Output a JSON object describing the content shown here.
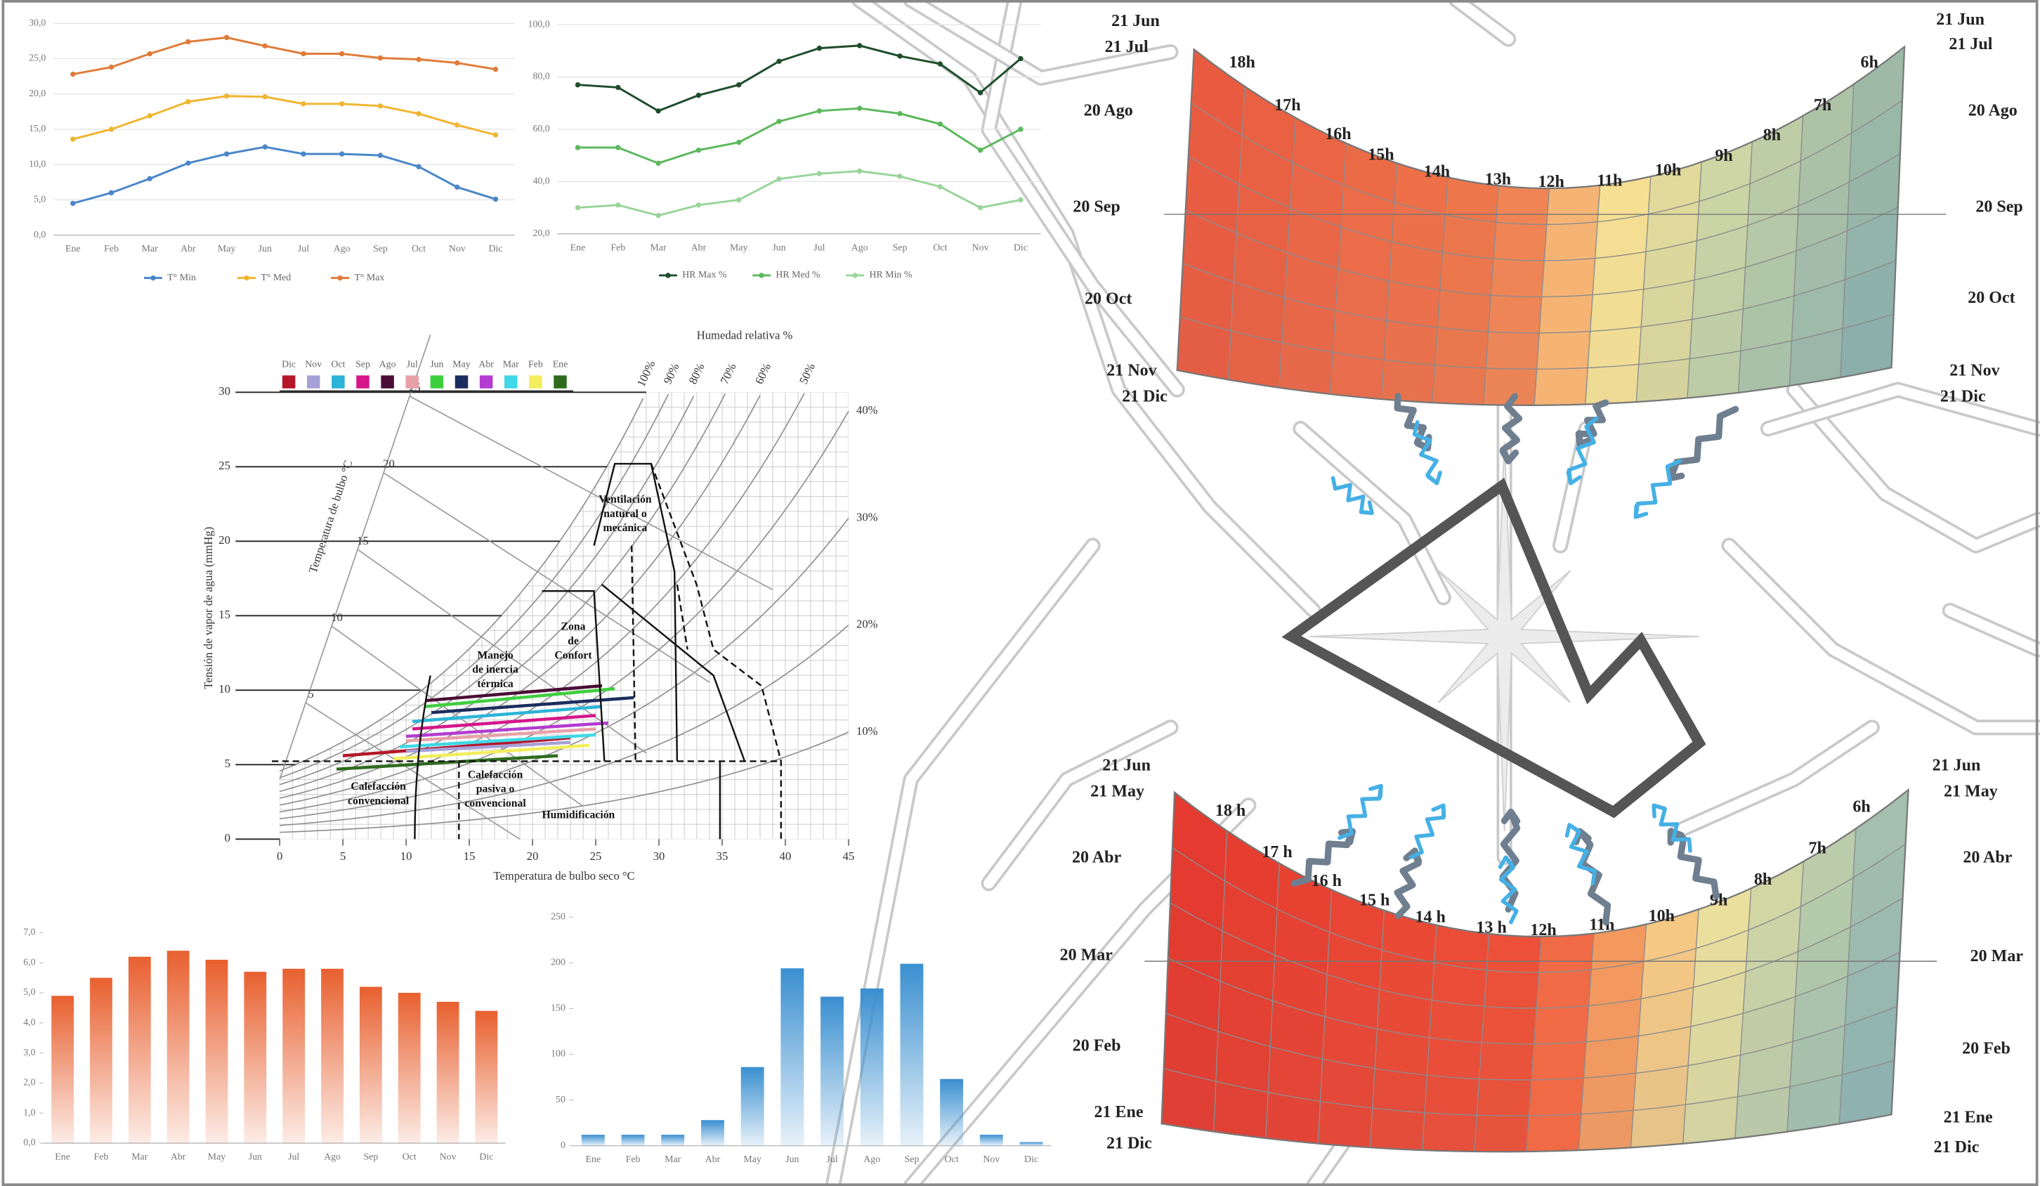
{
  "chart_data": [
    {
      "type": "line",
      "categories": [
        "Ene",
        "Feb",
        "Mar",
        "Abr",
        "May",
        "Jun",
        "Jul",
        "Ago",
        "Sep",
        "Oct",
        "Nov",
        "Dic"
      ],
      "series": [
        {
          "name": "T° Min",
          "color": "#4a86c8",
          "values": [
            4.5,
            6,
            8,
            10.2,
            11.5,
            12.5,
            11.5,
            11.5,
            11.3,
            9.7,
            6.8,
            5.1
          ]
        },
        {
          "name": "T° Med",
          "color": "#f0b530",
          "values": [
            13.6,
            15,
            16.9,
            18.9,
            19.7,
            19.6,
            18.6,
            18.6,
            18.3,
            17.2,
            15.6,
            14.2
          ]
        },
        {
          "name": "T° Max",
          "color": "#e07b39",
          "values": [
            22.8,
            23.8,
            25.7,
            27.4,
            28,
            26.8,
            25.7,
            25.7,
            25.1,
            24.9,
            24.4,
            23.5
          ]
        }
      ],
      "ylim": [
        0,
        30
      ],
      "yticks": [
        {
          "value": 0,
          "label": "0,0"
        },
        {
          "value": 5,
          "label": "5,0"
        },
        {
          "value": 10,
          "label": "10,0"
        },
        {
          "value": 15,
          "label": "15,0"
        },
        {
          "value": 20,
          "label": "20,0"
        },
        {
          "value": 25,
          "label": "25,0"
        },
        {
          "value": 30,
          "label": "30,0"
        }
      ],
      "grid": true,
      "legend": "bottom"
    },
    {
      "type": "line",
      "categories": [
        "Ene",
        "Feb",
        "Mar",
        "Abr",
        "May",
        "Jun",
        "Jul",
        "Ago",
        "Sep",
        "Oct",
        "Nov",
        "Dic"
      ],
      "series": [
        {
          "name": "HR Max %",
          "color": "#1e4d2b",
          "values": [
            77,
            76,
            67,
            73,
            77,
            86,
            91,
            92,
            88,
            85,
            74,
            87
          ]
        },
        {
          "name": "HR Med %",
          "color": "#5cb85c",
          "values": [
            53,
            53,
            47,
            52,
            55,
            63,
            67,
            68,
            66,
            62,
            52,
            60
          ]
        },
        {
          "name": "HR Min %",
          "color": "#9ad49a",
          "values": [
            30,
            31,
            27,
            31,
            33,
            41,
            43,
            44,
            42,
            38,
            30,
            33
          ]
        }
      ],
      "ylim": [
        20,
        100
      ],
      "yticks": [
        {
          "value": 20,
          "label": "20,0"
        },
        {
          "value": 40,
          "label": "40,0"
        },
        {
          "value": 60,
          "label": "60,0"
        },
        {
          "value": 80,
          "label": "80,0"
        },
        {
          "value": 100,
          "label": "100,0"
        }
      ],
      "grid": true,
      "legend": "bottom"
    },
    {
      "type": "bar",
      "categories": [
        "Ene",
        "Feb",
        "Mar",
        "Abr",
        "May",
        "Jun",
        "Jul",
        "Ago",
        "Sep",
        "Oct",
        "Nov",
        "Dic"
      ],
      "values": [
        4.9,
        5.5,
        6.2,
        6.4,
        6.1,
        5.7,
        5.8,
        5.8,
        5.2,
        5.0,
        4.7,
        4.4
      ],
      "color": "#e8602f",
      "ylim": [
        0,
        7
      ],
      "yticks": [
        {
          "value": 0,
          "label": "0,0"
        },
        {
          "value": 1,
          "label": "1,0"
        },
        {
          "value": 2,
          "label": "2,0"
        },
        {
          "value": 3,
          "label": "3,0"
        },
        {
          "value": 4,
          "label": "4,0"
        },
        {
          "value": 5,
          "label": "5,0"
        },
        {
          "value": 6,
          "label": "6,0"
        },
        {
          "value": 7,
          "label": "7,0"
        }
      ],
      "grid": false
    },
    {
      "type": "bar",
      "categories": [
        "Ene",
        "Feb",
        "Mar",
        "Abr",
        "May",
        "Jun",
        "Jul",
        "Ago",
        "Sep",
        "Oct",
        "Nov",
        "Dic"
      ],
      "values": [
        12,
        12,
        12,
        28,
        86,
        194,
        163,
        172,
        199,
        73,
        12,
        4
      ],
      "color": "#3a8fd0",
      "ylim": [
        0,
        250
      ],
      "yticks": [
        0,
        50,
        100,
        150,
        200,
        250
      ],
      "grid": false
    },
    {
      "type": "psychrometric",
      "xlabel": "Temperatura de bulbo seco °C",
      "ylabel": "Tensión de vapor de agua (mmHg)",
      "xlim": [
        0,
        45
      ],
      "xticks": [
        0,
        5,
        10,
        15,
        20,
        25,
        30,
        35,
        40,
        45
      ],
      "ylim": [
        0,
        30
      ],
      "yticks": [
        0,
        5,
        10,
        15,
        20,
        25,
        30
      ],
      "rh_title": "Humedad relativa %",
      "rh_curves": [
        {
          "value": 100,
          "label": "100%"
        },
        {
          "value": 90,
          "label": "90%"
        },
        {
          "value": 80,
          "label": "80%"
        },
        {
          "value": 70,
          "label": "70%"
        },
        {
          "value": 60,
          "label": "60%"
        },
        {
          "value": 50,
          "label": "50%"
        },
        {
          "value": 40,
          "label": "40%"
        },
        {
          "value": 30,
          "label": "30%"
        },
        {
          "value": 20,
          "label": "20%"
        },
        {
          "value": 10,
          "label": "10%"
        }
      ],
      "wet_bulb_label": "Temperatura de bulbo °C",
      "wet_bulb_ticks": [
        5,
        10,
        15,
        20,
        25
      ],
      "series": [
        {
          "name": "Dic",
          "color": "#b5162a",
          "x": [
            5,
            23
          ],
          "values": [
            5.6,
            6.8
          ]
        },
        {
          "name": "Nov",
          "color": "#a6a0d8",
          "x": [
            10,
            23
          ],
          "values": [
            5.9,
            6.5
          ]
        },
        {
          "name": "Oct",
          "color": "#2bb4d8",
          "x": [
            10.5,
            25.5
          ],
          "values": [
            7.9,
            8.9
          ]
        },
        {
          "name": "Sep",
          "color": "#d6168a",
          "x": [
            10.5,
            25
          ],
          "values": [
            7.4,
            8.3
          ]
        },
        {
          "name": "Ago",
          "color": "#4a0d35",
          "x": [
            11.5,
            25.5
          ],
          "values": [
            9.3,
            10.3
          ]
        },
        {
          "name": "Jul",
          "color": "#e8a0a8",
          "x": [
            10,
            25
          ],
          "values": [
            6.6,
            7.4
          ]
        },
        {
          "name": "Jun",
          "color": "#3ecf3e",
          "x": [
            11.5,
            26.5
          ],
          "values": [
            8.9,
            10.1
          ]
        },
        {
          "name": "May",
          "color": "#1b2d5e",
          "x": [
            12,
            28
          ],
          "values": [
            8.5,
            9.5
          ]
        },
        {
          "name": "Abr",
          "color": "#b33bd1",
          "x": [
            10,
            26
          ],
          "values": [
            6.9,
            7.8
          ]
        },
        {
          "name": "Mar",
          "color": "#3fd8e6",
          "x": [
            9.5,
            25
          ],
          "values": [
            6.2,
            7.0
          ]
        },
        {
          "name": "Feb",
          "color": "#f2ee5c",
          "x": [
            9,
            24.5
          ],
          "values": [
            5.4,
            6.3
          ]
        },
        {
          "name": "Ene",
          "color": "#2e6b1e",
          "x": [
            4.5,
            22
          ],
          "values": [
            4.7,
            5.6
          ]
        }
      ],
      "zones": [
        {
          "lines": [
            "Ventilación",
            "natural o",
            "mecánica"
          ]
        },
        {
          "lines": [
            "Zona",
            "de",
            "Confort"
          ]
        },
        {
          "lines": [
            "Manejo",
            "de inercia",
            "térmica"
          ]
        },
        {
          "lines": [
            "Calefacción",
            "convencional"
          ]
        },
        {
          "lines": [
            "Calefacción",
            "pasiva o",
            "convencional"
          ]
        },
        {
          "lines": [
            "Humidificación"
          ]
        }
      ]
    }
  ],
  "sun_paths": {
    "summer": {
      "dates": [
        "21 Jun",
        "21 Jul",
        "20 Ago",
        "20 Sep",
        "20 Oct",
        "21 Nov",
        "21 Dic"
      ],
      "hours": [
        "18h",
        "17h",
        "16h",
        "15h",
        "14h",
        "13h",
        "12h",
        "11h",
        "10h",
        "9h",
        "8h",
        "7h",
        "6h"
      ]
    },
    "winter": {
      "dates": [
        "21 Jun",
        "21 May",
        "20 Abr",
        "20 Mar",
        "20 Feb",
        "21 Ene",
        "21 Dic"
      ],
      "hours": [
        "18 h",
        "17 h",
        "16 h",
        "15 h",
        "14 h",
        "13 h",
        "12h",
        "11h",
        "10h",
        "9h",
        "8h",
        "7h",
        "6h"
      ]
    }
  }
}
